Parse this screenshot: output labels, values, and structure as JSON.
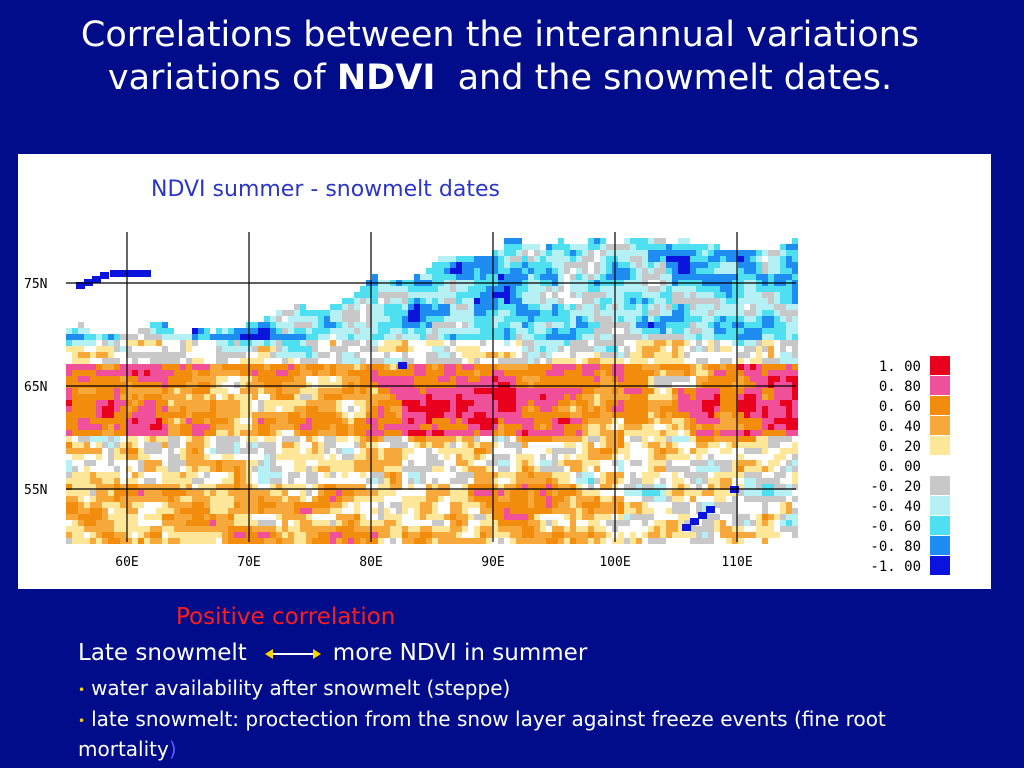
{
  "slide": {
    "title_part1": "Correlations between the interannual variations",
    "title_part2_pre": "variations of ",
    "title_bold": "NDVI",
    "title_part2_post": "  and the snowmelt dates."
  },
  "map": {
    "subtitle": "NDVI summer - snowmelt dates",
    "lat_labels": [
      "75N",
      "65N",
      "55N"
    ],
    "lon_labels": [
      "60E",
      "70E",
      "80E",
      "90E",
      "100E",
      "110E"
    ],
    "legend": [
      {
        "label": "1. 00",
        "color": "#e8001c"
      },
      {
        "label": "0. 80",
        "color": "#f0509a"
      },
      {
        "label": "0. 60",
        "color": "#f28c0c"
      },
      {
        "label": "0. 40",
        "color": "#f6a83a"
      },
      {
        "label": "0. 20",
        "color": "#ffe79a"
      },
      {
        "label": "0. 00",
        "color": "#ffffff"
      },
      {
        "label": "-0. 20",
        "color": "#c8c8c8"
      },
      {
        "label": "-0. 40",
        "color": "#b4f0f4"
      },
      {
        "label": "-0. 60",
        "color": "#4ee0f0"
      },
      {
        "label": "-0. 80",
        "color": "#1e8cf0"
      },
      {
        "label": "-1. 00",
        "color": "#0a14dc"
      }
    ]
  },
  "notes": {
    "positive_correlation": "Positive correlation",
    "late_snowmelt": "Late snowmelt",
    "more_ndvi": "more NDVI in  summer",
    "bullet1": "water availability after snowmelt (steppe)",
    "bullet2": "late snowmelt: proctection from the snow layer against freeze events (fine root mortality",
    "bullet2_close": ")"
  }
}
